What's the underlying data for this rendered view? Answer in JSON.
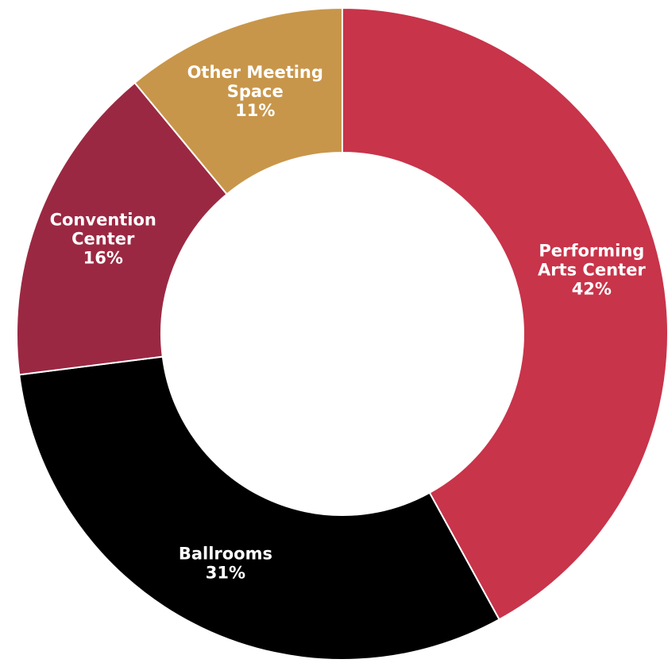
{
  "chart_data": {
    "type": "pie",
    "variant": "donut",
    "title": "",
    "start_angle_deg": 0,
    "direction": "clockwise",
    "slices": [
      {
        "label_lines": [
          "Performing",
          "Arts Center"
        ],
        "percent_label": "42%",
        "value": 42,
        "color": "#c8344a"
      },
      {
        "label_lines": [
          "Ballrooms"
        ],
        "percent_label": "31%",
        "value": 31,
        "color": "#000000"
      },
      {
        "label_lines": [
          "Convention",
          "Center"
        ],
        "percent_label": "16%",
        "value": 16,
        "color": "#9b2842"
      },
      {
        "label_lines": [
          "Other Meeting",
          "Space"
        ],
        "percent_label": "11%",
        "value": 11,
        "color": "#c8964a"
      }
    ],
    "legend": "none",
    "data_labels": "inside"
  }
}
